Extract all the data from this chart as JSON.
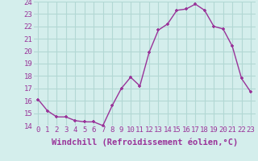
{
  "hours": [
    0,
    1,
    2,
    3,
    4,
    5,
    6,
    7,
    8,
    9,
    10,
    11,
    12,
    13,
    14,
    15,
    16,
    17,
    18,
    19,
    20,
    21,
    22,
    23
  ],
  "values": [
    16.1,
    15.2,
    14.7,
    14.7,
    14.4,
    14.3,
    14.3,
    14.0,
    15.6,
    17.0,
    17.9,
    17.2,
    19.9,
    21.7,
    22.2,
    23.3,
    23.4,
    23.8,
    23.3,
    22.0,
    21.8,
    20.4,
    17.8,
    16.7
  ],
  "ylim": [
    14,
    24
  ],
  "yticks": [
    14,
    15,
    16,
    17,
    18,
    19,
    20,
    21,
    22,
    23,
    24
  ],
  "xlabel": "Windchill (Refroidissement éolien,°C)",
  "line_color": "#993399",
  "marker": "+",
  "bg_color": "#d4eeec",
  "grid_color": "#b2d8d4",
  "tick_color": "#993399",
  "label_color": "#993399",
  "tick_fontsize": 6.5,
  "label_fontsize": 7.5
}
